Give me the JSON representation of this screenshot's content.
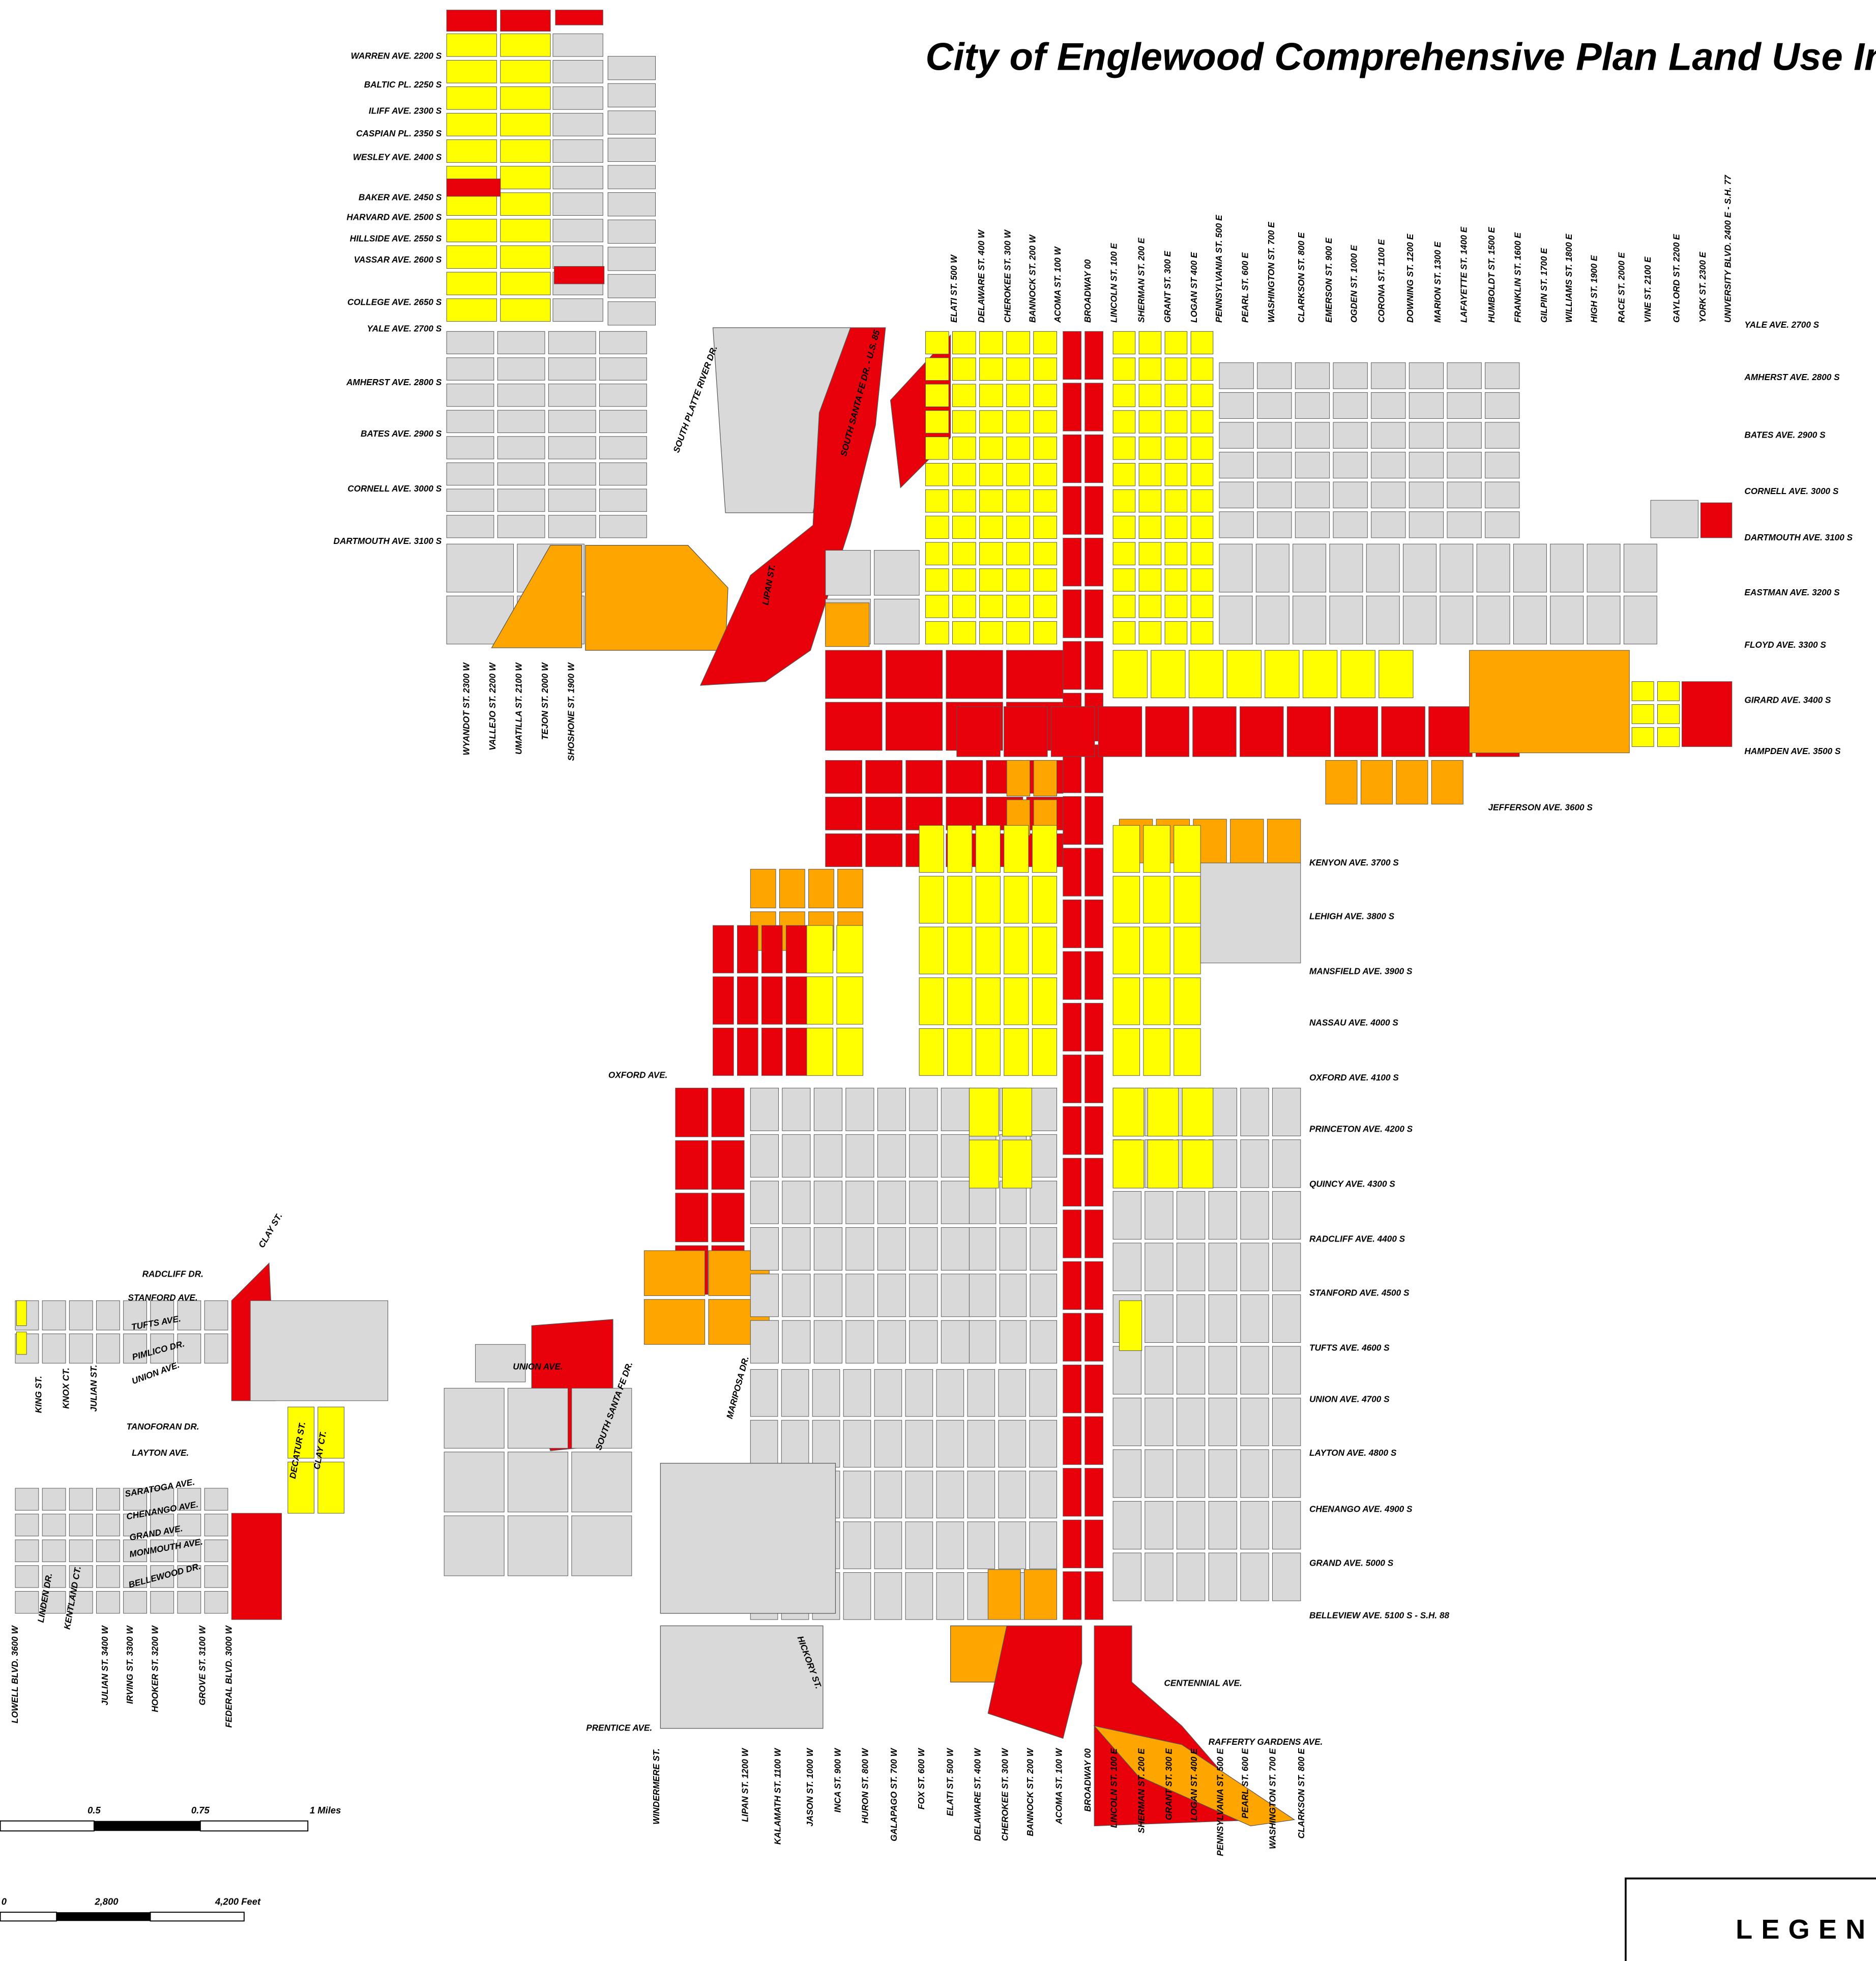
{
  "title": "City of Englewood Comprehensive Plan Land Use Inte",
  "avenues_northwest": [
    "WARREN AVE. 2200 S",
    "BALTIC PL. 2250 S",
    "ILIFF AVE. 2300 S",
    "CASPIAN PL. 2350 S",
    "WESLEY AVE. 2400 S",
    "BAKER AVE. 2450 S",
    "HARVARD AVE. 2500 S",
    "HILLSIDE AVE. 2550 S",
    "VASSAR AVE. 2600 S",
    "COLLEGE AVE. 2650 S",
    "YALE AVE. 2700 S",
    "AMHERST AVE. 2800 S",
    "BATES AVE. 2900 S",
    "CORNELL AVE. 3000 S",
    "DARTMOUTH AVE. 3100 S"
  ],
  "streets_northwest": [
    "WYANDOT ST. 2300 W",
    "VALLEJO ST. 2200 W",
    "UMATILLA ST. 2100 W",
    "TEJON ST. 2000 W",
    "SHOSHONE ST. 1900 W"
  ],
  "streets_north": [
    "ELATI ST. 500 W",
    "DELAWARE ST. 400 W",
    "CHEROKEE ST. 300 W",
    "BANNOCK ST. 200 W",
    "ACOMA ST. 100 W",
    "BROADWAY 00",
    "LINCOLN ST. 100 E",
    "SHERMAN ST. 200 E",
    "GRANT ST. 300 E",
    "LOGAN ST 400 E",
    "PENNSYLVANIA ST. 500 E",
    "PEARL ST. 600 E",
    "WASHINGTON ST. 700 E",
    "CLARKSON ST. 800 E",
    "EMERSON ST. 900 E",
    "OGDEN ST. 1000 E",
    "CORONA ST. 1100 E",
    "DOWNING ST. 1200 E",
    "MARION ST. 1300 E",
    "LAFAYETTE ST. 1400 E",
    "HUMBOLDT ST. 1500 E",
    "FRANKLIN ST. 1600 E",
    "GILPIN ST. 1700 E",
    "WILLIAMS ST. 1800 E",
    "HIGH ST. 1900 E",
    "RACE ST. 2000 E",
    "VINE ST. 2100 E",
    "GAYLORD ST. 2200 E",
    "YORK ST. 2300 E",
    "UNIVERSITY BLVD. 2400 E - S.H. 77"
  ],
  "avenues_east": [
    "YALE AVE. 2700 S",
    "AMHERST AVE. 2800 S",
    "BATES AVE. 2900 S",
    "CORNELL AVE. 3000 S",
    "DARTMOUTH AVE. 3100 S",
    "EASTMAN AVE. 3200 S",
    "FLOYD AVE. 3300 S",
    "GIRARD AVE. 3400 S",
    "HAMPDEN AVE. 3500 S"
  ],
  "avenues_south": [
    "JEFFERSON AVE. 3600 S",
    "KENYON AVE. 3700 S",
    "LEHIGH AVE. 3800 S",
    "MANSFIELD AVE. 3900 S",
    "NASSAU AVE. 4000 S",
    "OXFORD AVE. 4100 S",
    "PRINCETON AVE. 4200 S",
    "QUINCY AVE. 4300 S",
    "RADCLIFF AVE. 4400 S",
    "STANFORD AVE. 4500 S",
    "TUFTS AVE. 4600 S",
    "UNION AVE. 4700 S",
    "LAYTON AVE. 4800 S",
    "CHENANGO AVE. 4900 S",
    "GRAND AVE. 5000 S",
    "BELLEVIEW AVE. 5100 S - S.H. 88"
  ],
  "streets_south": [
    "WINDERMERE ST.",
    "LIPAN ST. 1200 W",
    "KALAMATH ST. 1100 W",
    "JASON ST. 1000 W",
    "INCA ST. 900 W",
    "HURON ST. 800 W",
    "GALAPAGO ST. 700 W",
    "FOX ST. 600 W",
    "ELATI ST. 500 W",
    "DELAWARE ST. 400 W",
    "CHEROKEE ST. 300 W",
    "BANNOCK ST. 200 W",
    "ACOMA ST. 100 W",
    "BROADWAY 00",
    "LINCOLN ST. 100 E",
    "SHERMAN ST. 200 E",
    "GRANT ST. 300 E",
    "LOGAN ST. 400 E",
    "PENNSYLVANIA ST. 500 E",
    "PEARL ST. 600 E",
    "WASHINGTON ST. 700 E",
    "CLARKSON ST. 800 E"
  ],
  "streets_southwest": [
    "LOWELL BLVD. 3600 W",
    "JULIAN ST. 3400 W",
    "IRVING ST. 3300 W",
    "HOOKER ST. 3200 W",
    "GROVE ST. 3100 W",
    "FEDERAL BLVD. 3000 W"
  ],
  "other_labels": [
    "SOUTH PLATTE RIVER DR.",
    "SOUTH SANTA FE DR. - U.S. 85",
    "LIPAN ST.",
    "OXFORD AVE.",
    "UNION AVE.",
    "SOUTH SANTA FE DR.",
    "MARIPOSA DR.",
    "HICKORY ST.",
    "PRENTICE AVE.",
    "CENTENNIAL AVE.",
    "RAFFERTY GARDENS AVE.",
    "RADCLIFF DR.",
    "STANFORD AVE.",
    "TUFTS AVE.",
    "PIMLICO DR.",
    "UNION AVE.",
    "TANOFORAN DR.",
    "LAYTON AVE.",
    "SARATOGA AVE.",
    "CHENANGO AVE.",
    "GRAND AVE.",
    "MONMOUTH AVE.",
    "BELLEWOOD DR.",
    "CLAY ST.",
    "DECATUR ST.",
    "CLAY CT.",
    "KING ST.",
    "KNOX CT.",
    "JULIAN ST.",
    "LINDEN DR.",
    "KENTLAND CT."
  ],
  "scale_miles": [
    "0.5",
    "0.75",
    "1 Miles"
  ],
  "scale_feet": [
    "0",
    "2,800",
    "4,200 Feet"
  ],
  "legend": "LEGEN"
}
